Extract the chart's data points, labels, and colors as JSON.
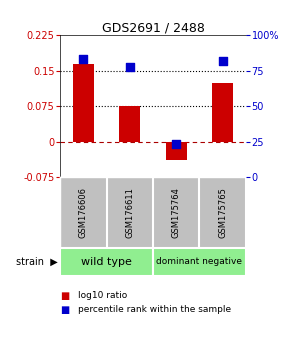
{
  "title": "GDS2691 / 2488",
  "samples": [
    "GSM176606",
    "GSM176611",
    "GSM175764",
    "GSM175765"
  ],
  "log10_ratios": [
    0.165,
    0.075,
    -0.04,
    0.125
  ],
  "percentile_ranks": [
    83,
    78,
    23,
    82
  ],
  "ylim_left": [
    -0.075,
    0.225
  ],
  "ylim_right": [
    0,
    100
  ],
  "yticks_left": [
    -0.075,
    0,
    0.075,
    0.15,
    0.225
  ],
  "yticks_right": [
    0,
    25,
    50,
    75,
    100
  ],
  "ytick_labels_left": [
    "-0.075",
    "0",
    "0.075",
    "0.15",
    "0.225"
  ],
  "ytick_labels_right": [
    "0",
    "25",
    "50",
    "75",
    "100%"
  ],
  "hlines": [
    0.075,
    0.15
  ],
  "bar_color": "#CC0000",
  "dot_color": "#0000CC",
  "bar_width": 0.45,
  "dot_size": 30,
  "left_tick_color": "#CC0000",
  "right_tick_color": "#0000CC",
  "background_color": "#ffffff",
  "sample_box_color": "#C0C0C0",
  "group_color": "#90EE90",
  "legend_bar_label": "log10 ratio",
  "legend_dot_label": "percentile rank within the sample",
  "strain_label": "strain"
}
